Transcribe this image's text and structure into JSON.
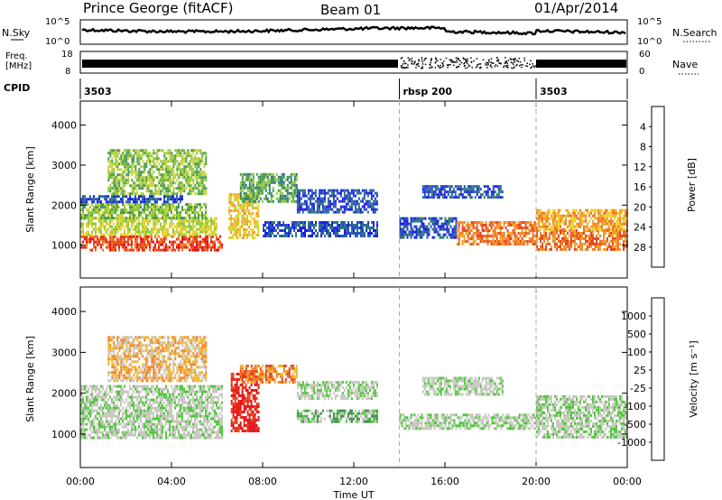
{
  "header": {
    "station": "Prince George (fitACF)",
    "beam": "Beam 01",
    "date": "01/Apr/2014"
  },
  "noise_panel": {
    "left_label": "N.Sky",
    "left_ticks": [
      "10^5",
      "10^0"
    ],
    "right_label": "N.Search",
    "right_ticks": [
      "10^5",
      "10^0"
    ]
  },
  "freq_panel": {
    "left_label_1": "Freq.",
    "left_label_2": "[MHz]",
    "left_ticks": [
      "18",
      "8"
    ],
    "right_label": "Nave",
    "right_ticks": [
      "60",
      "0"
    ]
  },
  "cpid": {
    "label": "CPID",
    "segments": [
      {
        "name": "3503",
        "start_hour": 0
      },
      {
        "name": "rbsp 200",
        "start_hour": 14
      },
      {
        "name": "3503",
        "start_hour": 20
      }
    ]
  },
  "time_axis": {
    "ticks": [
      "00:00",
      "04:00",
      "08:00",
      "12:00",
      "16:00",
      "20:00",
      "00:00"
    ],
    "label": "Time UT"
  },
  "chart_data": [
    {
      "type": "heatmap",
      "parameter": "Power",
      "ylabel": "Slant Range [km]",
      "yticks": [
        1000,
        2000,
        3000,
        4000
      ],
      "ylim": [
        180,
        4600
      ],
      "xlim_hours": [
        0,
        24
      ],
      "colorbar": {
        "label": "Power [dB]",
        "ticks": [
          "4",
          "8",
          "12",
          "16",
          "20",
          "24",
          "28"
        ],
        "colors": [
          "#1e1ee6",
          "#2850c8",
          "#2e7a7a",
          "#4a9a4a",
          "#8cc83c",
          "#c8d23c",
          "#f0d230",
          "#f5a028",
          "#f07828",
          "#e6461e",
          "#e61414"
        ]
      },
      "echo_bands": [
        {
          "t0": 0.0,
          "t1": 6.2,
          "r0": 900,
          "r1": 1250,
          "level": 9
        },
        {
          "t0": 0.0,
          "t1": 6.0,
          "r0": 1250,
          "r1": 1700,
          "level": 5
        },
        {
          "t0": 0.0,
          "t1": 5.5,
          "r0": 1700,
          "r1": 2050,
          "level": 4
        },
        {
          "t0": 0.0,
          "t1": 4.5,
          "r0": 2050,
          "r1": 2250,
          "level": 1
        },
        {
          "t0": 1.2,
          "t1": 5.5,
          "r0": 2300,
          "r1": 3400,
          "level": 4
        },
        {
          "t0": 6.5,
          "t1": 7.8,
          "r0": 1200,
          "r1": 2300,
          "level": 6
        },
        {
          "t0": 7.0,
          "t1": 9.5,
          "r0": 2100,
          "r1": 2800,
          "level": 3
        },
        {
          "t0": 9.5,
          "t1": 13.0,
          "r0": 1850,
          "r1": 2400,
          "level": 1
        },
        {
          "t0": 8.0,
          "t1": 13.0,
          "r0": 1200,
          "r1": 1600,
          "level": 1
        },
        {
          "t0": 14.0,
          "t1": 16.5,
          "r0": 1200,
          "r1": 1700,
          "level": 1
        },
        {
          "t0": 15.0,
          "t1": 18.5,
          "r0": 2200,
          "r1": 2500,
          "level": 1
        },
        {
          "t0": 16.5,
          "t1": 20.0,
          "r0": 1050,
          "r1": 1600,
          "level": 8
        },
        {
          "t0": 20.0,
          "t1": 24.0,
          "r0": 900,
          "r1": 1400,
          "level": 8
        },
        {
          "t0": 20.0,
          "t1": 24.0,
          "r0": 1400,
          "r1": 1900,
          "level": 7
        }
      ]
    },
    {
      "type": "heatmap",
      "parameter": "Velocity",
      "ylabel": "Slant Range [km]",
      "yticks": [
        1000,
        2000,
        3000,
        4000
      ],
      "ylim": [
        180,
        4600
      ],
      "xlim_hours": [
        0,
        24
      ],
      "colorbar": {
        "label": "Velocity [m s⁻¹]",
        "ticks": [
          "1000",
          "500",
          "100",
          "25",
          "-25",
          "-100",
          "-500",
          "-1000"
        ],
        "colors": [
          "#1e1ed2",
          "#285ab4",
          "#3c8c50",
          "#50c83c",
          "#c8c8c0",
          "#c8c8c0",
          "#f5b428",
          "#f08228",
          "#e6461e",
          "#e61414"
        ]
      },
      "echo_bands": [
        {
          "t0": 0.0,
          "t1": 6.2,
          "r0": 900,
          "r1": 2200,
          "level": 4
        },
        {
          "t0": 1.2,
          "t1": 5.5,
          "r0": 2300,
          "r1": 3400,
          "level": 6
        },
        {
          "t0": 6.6,
          "t1": 7.8,
          "r0": 1100,
          "r1": 2500,
          "level": 9
        },
        {
          "t0": 7.0,
          "t1": 9.5,
          "r0": 2300,
          "r1": 2700,
          "level": 7
        },
        {
          "t0": 9.5,
          "t1": 13.0,
          "r0": 1850,
          "r1": 2300,
          "level": 4
        },
        {
          "t0": 9.5,
          "t1": 13.0,
          "r0": 1300,
          "r1": 1600,
          "level": 3
        },
        {
          "t0": 14.0,
          "t1": 20.0,
          "r0": 1150,
          "r1": 1500,
          "level": 4
        },
        {
          "t0": 15.0,
          "t1": 18.5,
          "r0": 2000,
          "r1": 2400,
          "level": 4
        },
        {
          "t0": 20.0,
          "t1": 24.0,
          "r0": 950,
          "r1": 1950,
          "level": 4
        }
      ]
    }
  ]
}
